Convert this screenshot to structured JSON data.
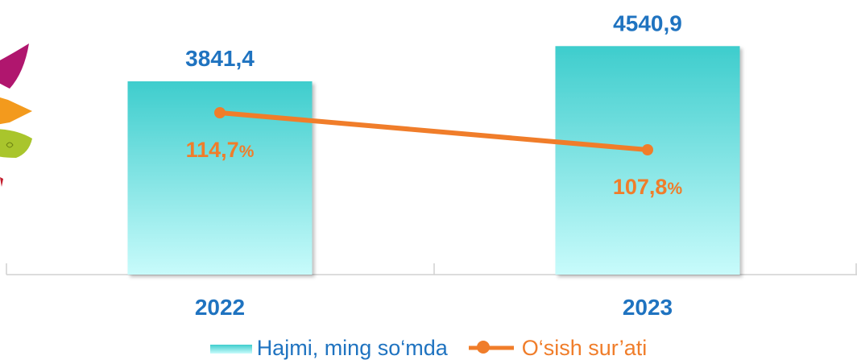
{
  "chart_data": {
    "type": "bar",
    "categories": [
      "2022",
      "2023"
    ],
    "series": [
      {
        "name": "Hajmi, ming so‘mda",
        "kind": "bar",
        "values": [
          3841.4,
          4540.9
        ],
        "labels": [
          "3841,4",
          "4540,9"
        ],
        "color": "#3ecdcd",
        "label_color": "#1f73c0"
      },
      {
        "name": "O‘sish sur’ati",
        "kind": "line",
        "values": [
          114.7,
          107.8
        ],
        "labels": [
          "114,7%",
          "107,8%"
        ],
        "color": "#f07d2a",
        "label_color": "#f07d2a"
      }
    ],
    "legend_position": "bottom",
    "grid": false
  }
}
